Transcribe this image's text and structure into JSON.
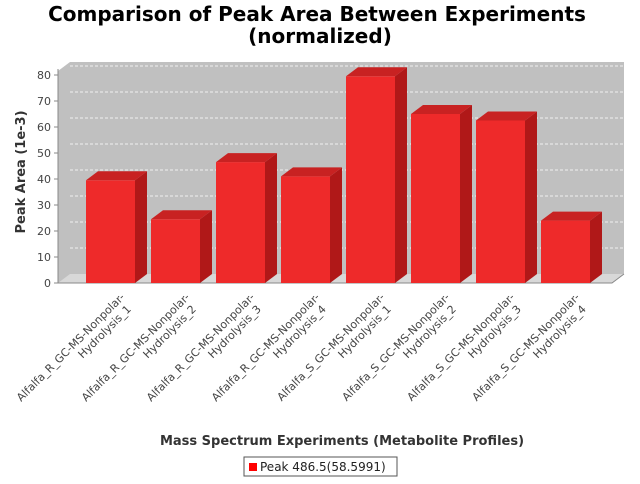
{
  "chart_data": {
    "type": "bar",
    "title": "Comparison of Peak Area Between Experiments (normalized)",
    "title_lines": [
      "Comparison of Peak Area Between Experiments",
      "(normalized)"
    ],
    "xlabel": "Mass Spectrum Experiments (Metabolite Profiles)",
    "ylabel": "Peak Area (1e-3)",
    "ylim": [
      0,
      85
    ],
    "yticks": [
      0,
      10,
      20,
      30,
      40,
      50,
      60,
      70,
      80
    ],
    "grid": true,
    "legend_placement": "bottom",
    "categories": [
      "Alfalfa_R_GC-MS-Nonpolar-Hydrolysis_1",
      "Alfalfa_R_GC-MS-Nonpolar-Hydrolysis_2",
      "Alfalfa_R_GC-MS-Nonpolar-Hydrolysis_3",
      "Alfalfa_R_GC-MS-Nonpolar-Hydrolysis_4",
      "Alfalfa_S_GC-MS-Nonpolar-Hydrolysis_1",
      "Alfalfa_S_GC-MS-Nonpolar-Hydrolysis_2",
      "Alfalfa_S_GC-MS-Nonpolar-Hydrolysis_3",
      "Alfalfa_S_GC-MS-Nonpolar-Hydrolysis_4"
    ],
    "category_lines": [
      [
        "Alfalfa_R_GC-MS-Nonpolar-",
        "Hydrolysis_1"
      ],
      [
        "Alfalfa_R_GC-MS-Nonpolar-",
        "Hydrolysis_2"
      ],
      [
        "Alfalfa_R_GC-MS-Nonpolar-",
        "Hydrolysis_3"
      ],
      [
        "Alfalfa_R_GC-MS-Nonpolar-",
        "Hydrolysis_4"
      ],
      [
        "Alfalfa_S_GC-MS-Nonpolar-",
        "Hydrolysis_1"
      ],
      [
        "Alfalfa_S_GC-MS-Nonpolar-",
        "Hydrolysis_2"
      ],
      [
        "Alfalfa_S_GC-MS-Nonpolar-",
        "Hydrolysis_3"
      ],
      [
        "Alfalfa_S_GC-MS-Nonpolar-",
        "Hydrolysis_4"
      ]
    ],
    "series": [
      {
        "name": "Peak 486.5(58.5991)",
        "color": "#ff0000",
        "values": [
          39.5,
          24.5,
          46.5,
          41,
          79.5,
          65,
          62.5,
          24
        ]
      }
    ],
    "colors": {
      "plot_background": "#c0c0c0",
      "bar_front": "#ee2a2a",
      "bar_side": "#b01818",
      "bar_top": "#c82222",
      "gridline": "#ffffff"
    }
  }
}
